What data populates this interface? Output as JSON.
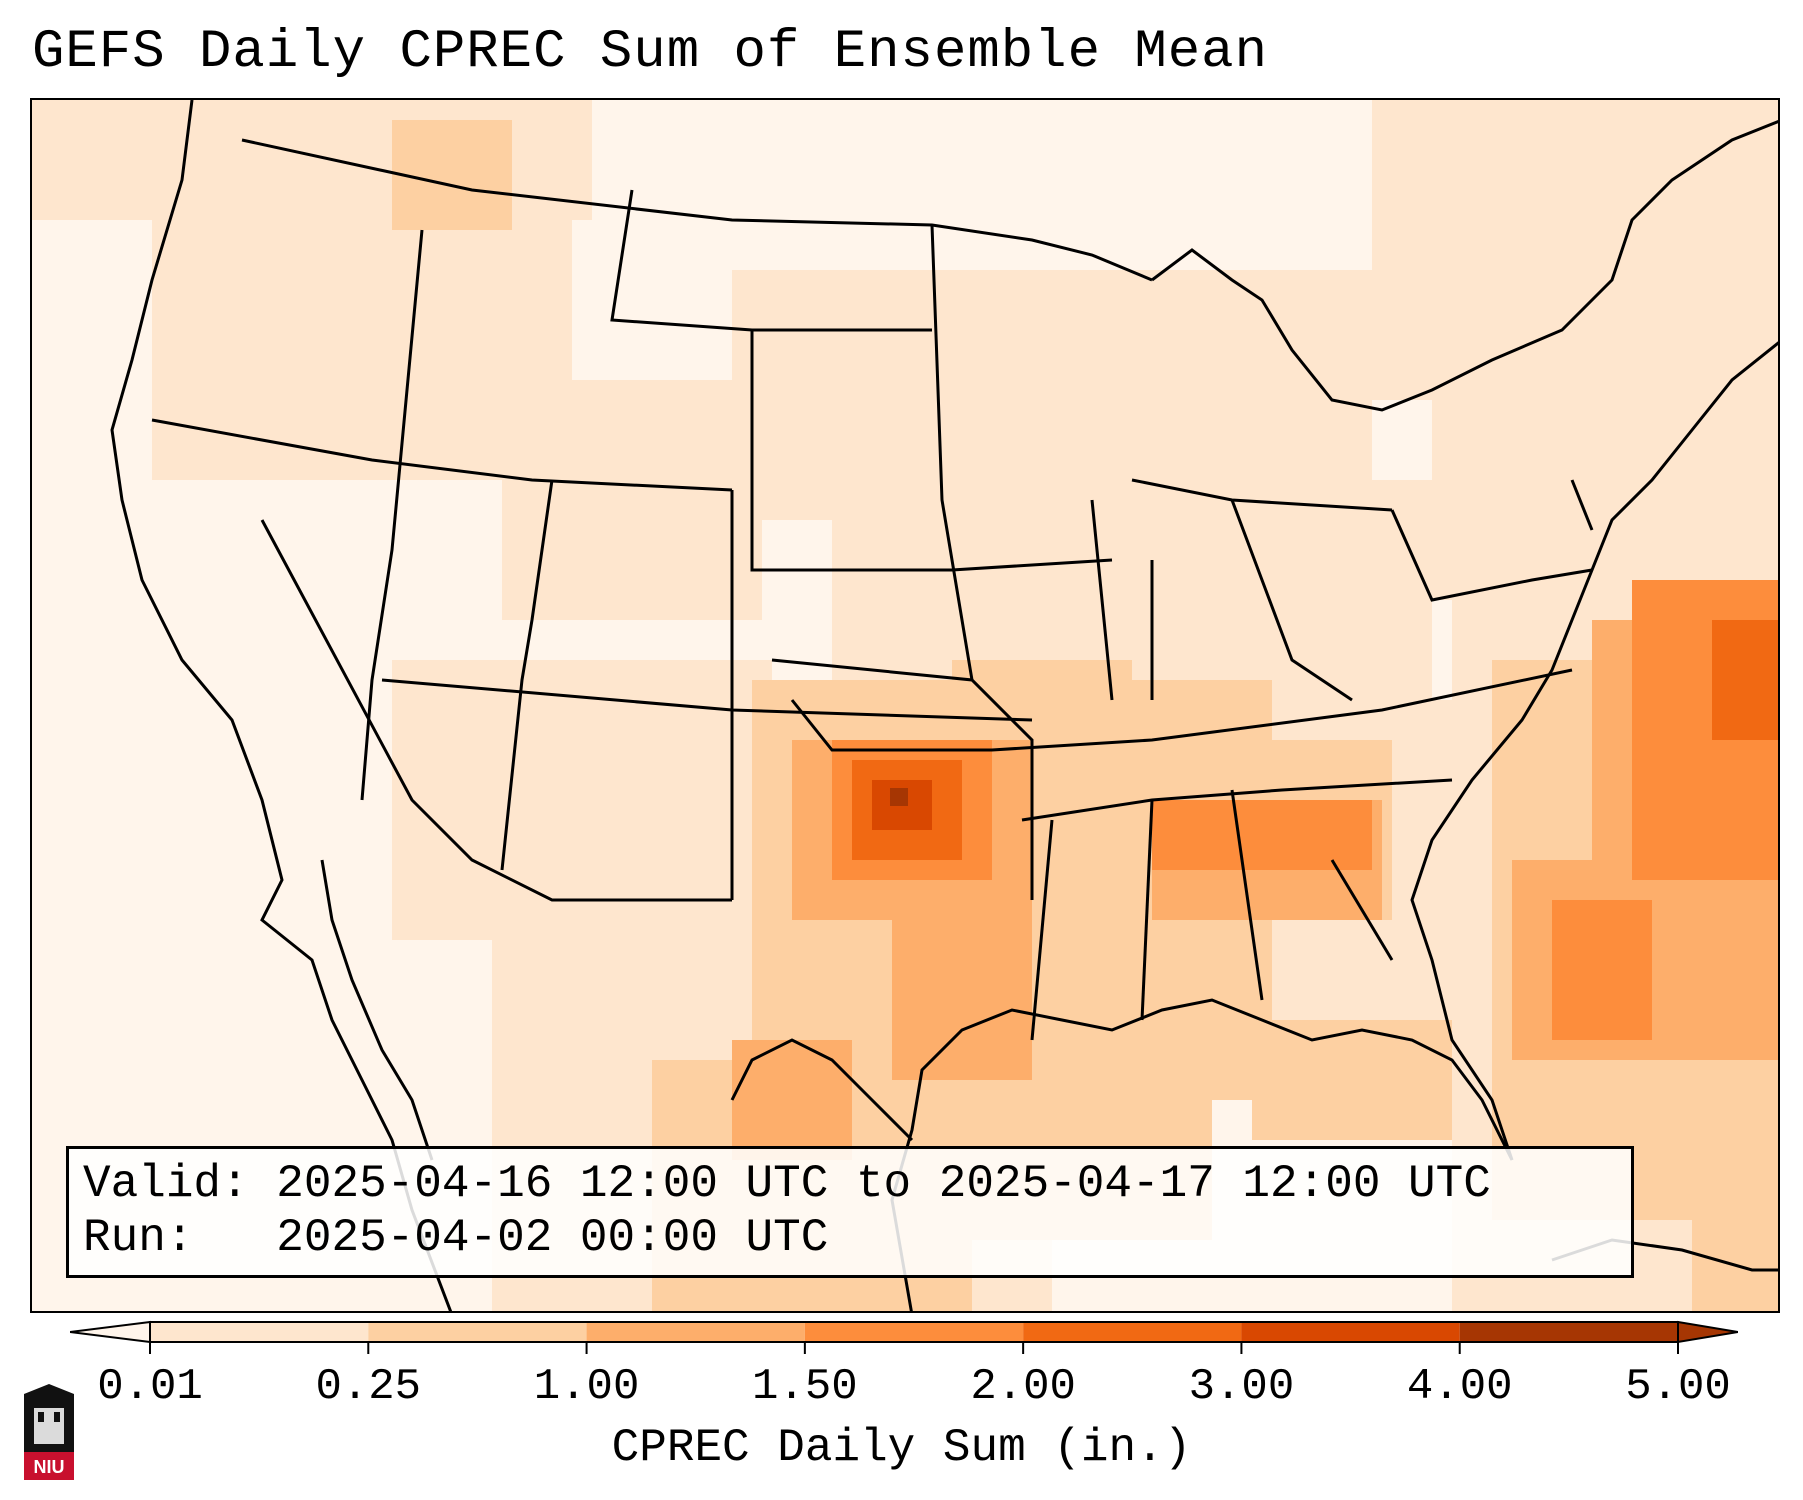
{
  "title": "GEFS Daily CPREC Sum of Ensemble Mean",
  "info": {
    "valid_label": "Valid:",
    "valid_value": "2025-04-16 12:00 UTC to 2025-04-17 12:00 UTC",
    "run_label": "Run:",
    "run_value": "2025-04-02 00:00 UTC"
  },
  "colorbar": {
    "title": "CPREC Daily Sum (in.)",
    "tick_labels": [
      "0.01",
      "0.25",
      "1.00",
      "1.50",
      "2.00",
      "3.00",
      "4.00",
      "5.00"
    ],
    "colors": [
      "#fff5eb",
      "#fee6ce",
      "#fdd0a2",
      "#fdae6b",
      "#fd8d3c",
      "#f16913",
      "#d94801",
      "#a63603"
    ]
  },
  "logo_text": "NIU"
}
